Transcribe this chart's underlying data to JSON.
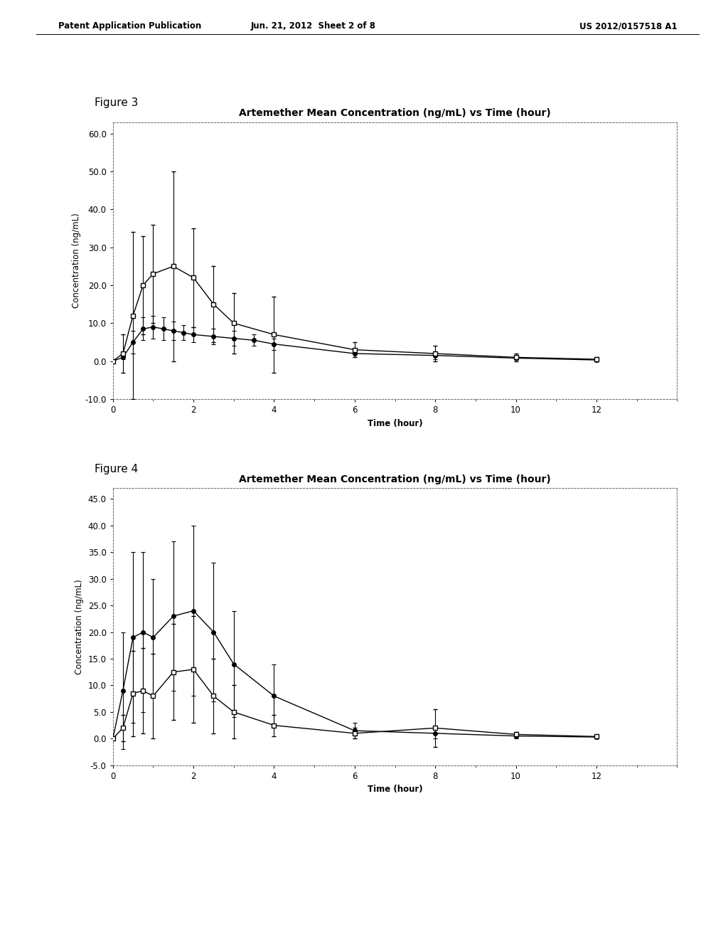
{
  "page_title_left": "Patent Application Publication",
  "page_title_center": "Jun. 21, 2012  Sheet 2 of 8",
  "page_title_right": "US 2012/0157518 A1",
  "fig3_label": "Figure 3",
  "fig3_title": "Artemether Mean Concentration (ng/mL) vs Time (hour)",
  "fig3_ylabel": "Concentration (ng/mL)",
  "fig3_xlabel": "Time (hour)",
  "fig3_ylim": [
    -10.0,
    63.0
  ],
  "fig3_yticks": [
    -10.0,
    0.0,
    10.0,
    20.0,
    30.0,
    40.0,
    50.0,
    60.0
  ],
  "fig3_xlim": [
    0,
    14.0
  ],
  "fig3_xticks": [
    0,
    2,
    4,
    6,
    8,
    10,
    12
  ],
  "fig3_s1_x": [
    0,
    0.25,
    0.5,
    0.75,
    1.0,
    1.25,
    1.5,
    1.75,
    2.0,
    2.5,
    3.0,
    3.5,
    4.0,
    6.0,
    8.0,
    10.0,
    12.0
  ],
  "fig3_s1_y": [
    0.0,
    1.0,
    5.0,
    8.5,
    9.0,
    8.5,
    8.0,
    7.5,
    7.0,
    6.5,
    6.0,
    5.5,
    4.5,
    2.0,
    1.5,
    0.8,
    0.3
  ],
  "fig3_s1_yerr": [
    0.0,
    0.5,
    3.0,
    3.0,
    3.0,
    3.0,
    2.5,
    2.0,
    2.0,
    2.0,
    2.0,
    1.5,
    1.5,
    1.0,
    1.0,
    0.5,
    0.3
  ],
  "fig3_s2_x": [
    0,
    0.25,
    0.5,
    0.75,
    1.0,
    1.5,
    2.0,
    2.5,
    3.0,
    4.0,
    6.0,
    8.0,
    10.0,
    12.0
  ],
  "fig3_s2_y": [
    0.0,
    2.0,
    12.0,
    20.0,
    23.0,
    25.0,
    22.0,
    15.0,
    10.0,
    7.0,
    3.0,
    2.0,
    1.0,
    0.5
  ],
  "fig3_s2_yerr": [
    0.0,
    5.0,
    22.0,
    13.0,
    13.0,
    25.0,
    13.0,
    10.0,
    8.0,
    10.0,
    2.0,
    2.0,
    1.0,
    0.5
  ],
  "fig4_label": "Figure 4",
  "fig4_title": "Artemether Mean Concentration (ng/mL) vs Time (hour)",
  "fig4_ylabel": "Concentration (ng/mL)",
  "fig4_xlabel": "Time (hour)",
  "fig4_ylim": [
    -5.0,
    47.0
  ],
  "fig4_yticks": [
    -5.0,
    0.0,
    5.0,
    10.0,
    15.0,
    20.0,
    25.0,
    30.0,
    35.0,
    40.0,
    45.0
  ],
  "fig4_xlim": [
    0,
    14.0
  ],
  "fig4_xticks": [
    0,
    2,
    4,
    6,
    8,
    10,
    12
  ],
  "fig4_s1_x": [
    0,
    0.25,
    0.5,
    0.75,
    1.0,
    1.5,
    2.0,
    2.5,
    3.0,
    4.0,
    6.0,
    8.0,
    10.0,
    12.0
  ],
  "fig4_s1_y": [
    0.0,
    9.0,
    19.0,
    20.0,
    19.0,
    23.0,
    24.0,
    20.0,
    14.0,
    8.0,
    1.5,
    1.0,
    0.5,
    0.3
  ],
  "fig4_s1_yerr": [
    0.0,
    11.0,
    16.0,
    15.0,
    11.0,
    14.0,
    16.0,
    13.0,
    10.0,
    6.0,
    1.5,
    1.0,
    0.5,
    0.3
  ],
  "fig4_s2_x": [
    0,
    0.25,
    0.5,
    0.75,
    1.0,
    1.5,
    2.0,
    2.5,
    3.0,
    4.0,
    6.0,
    8.0,
    10.0,
    12.0
  ],
  "fig4_s2_y": [
    0.0,
    2.0,
    8.5,
    9.0,
    8.0,
    12.5,
    13.0,
    8.0,
    5.0,
    2.5,
    1.0,
    2.0,
    0.8,
    0.4
  ],
  "fig4_s2_yerr": [
    0.0,
    2.5,
    8.0,
    8.0,
    8.0,
    9.0,
    10.0,
    7.0,
    5.0,
    2.0,
    1.0,
    3.5,
    0.5,
    0.3
  ],
  "bg_color": "#ffffff",
  "title_fontsize": 10,
  "label_fontsize": 8.5,
  "tick_fontsize": 8.5,
  "fig_label_fontsize": 11
}
